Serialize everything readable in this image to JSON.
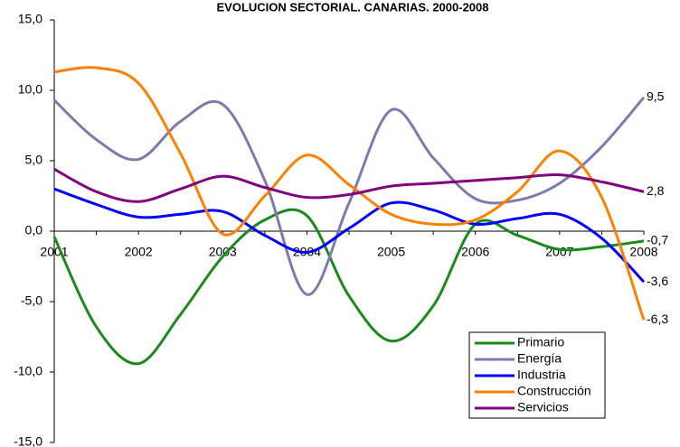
{
  "chart_data": {
    "type": "line",
    "title": "EVOLUCION SECTORIAL. CANARIAS. 2000-2008",
    "categories": [
      "2001",
      null,
      "2002",
      null,
      "2003",
      null,
      "2004",
      null,
      "2005",
      null,
      "2006",
      null,
      "2007",
      null,
      "2008"
    ],
    "series": [
      {
        "name": "Primario",
        "color": "#1a8a1a",
        "values": [
          -0.4,
          -6.8,
          -9.4,
          -5.9,
          -1.8,
          0.8,
          1.1,
          -4.6,
          -7.8,
          -5.3,
          0.5,
          -0.3,
          -1.3,
          -1.1,
          -0.7
        ],
        "value_labels": [
          null,
          null,
          null,
          null,
          null,
          null,
          null,
          null,
          null,
          null,
          null,
          null,
          null,
          null,
          "-0,7"
        ]
      },
      {
        "name": "Energía",
        "color": "#7b7bb0",
        "values": [
          9.3,
          6.5,
          5.1,
          7.8,
          9.0,
          3.6,
          -4.5,
          2.0,
          8.6,
          5.2,
          2.3,
          2.2,
          3.4,
          6.0,
          9.5
        ],
        "value_labels": [
          null,
          null,
          null,
          null,
          null,
          null,
          null,
          null,
          null,
          null,
          null,
          null,
          null,
          null,
          "9,5"
        ]
      },
      {
        "name": "Industria",
        "color": "#0000ff",
        "values": [
          3.0,
          1.9,
          1.0,
          1.2,
          1.4,
          -0.3,
          -1.5,
          0.2,
          2.0,
          1.5,
          0.5,
          0.9,
          1.2,
          -0.5,
          -3.6
        ],
        "value_labels": [
          null,
          null,
          null,
          null,
          null,
          null,
          null,
          null,
          null,
          null,
          null,
          null,
          null,
          null,
          "-3,6"
        ]
      },
      {
        "name": "Construcción",
        "color": "#ff8000",
        "values": [
          11.3,
          11.6,
          10.5,
          5.5,
          -0.2,
          2.5,
          5.4,
          3.3,
          1.2,
          0.5,
          0.8,
          2.8,
          5.7,
          2.4,
          -6.3
        ],
        "value_labels": [
          null,
          null,
          null,
          null,
          null,
          null,
          null,
          null,
          null,
          null,
          null,
          null,
          null,
          null,
          "-6,3"
        ]
      },
      {
        "name": "Servicios",
        "color": "#800080",
        "values": [
          4.4,
          2.8,
          2.1,
          3.0,
          3.9,
          3.1,
          2.4,
          2.6,
          3.2,
          3.4,
          3.6,
          3.8,
          4.0,
          3.5,
          2.8
        ],
        "value_labels": [
          null,
          null,
          null,
          null,
          null,
          null,
          null,
          null,
          null,
          null,
          null,
          null,
          null,
          null,
          "2,8"
        ]
      }
    ],
    "ylim": [
      -15,
      15
    ],
    "yticks": [
      {
        "value": -15,
        "label": "-15,0"
      },
      {
        "value": -10,
        "label": "-10,0"
      },
      {
        "value": -5,
        "label": "-5,0"
      },
      {
        "value": 0,
        "label": "0,0"
      },
      {
        "value": 5,
        "label": "5,0"
      },
      {
        "value": 10,
        "label": "10,0"
      },
      {
        "value": 15,
        "label": "15,0"
      }
    ],
    "legend": "lower right"
  }
}
